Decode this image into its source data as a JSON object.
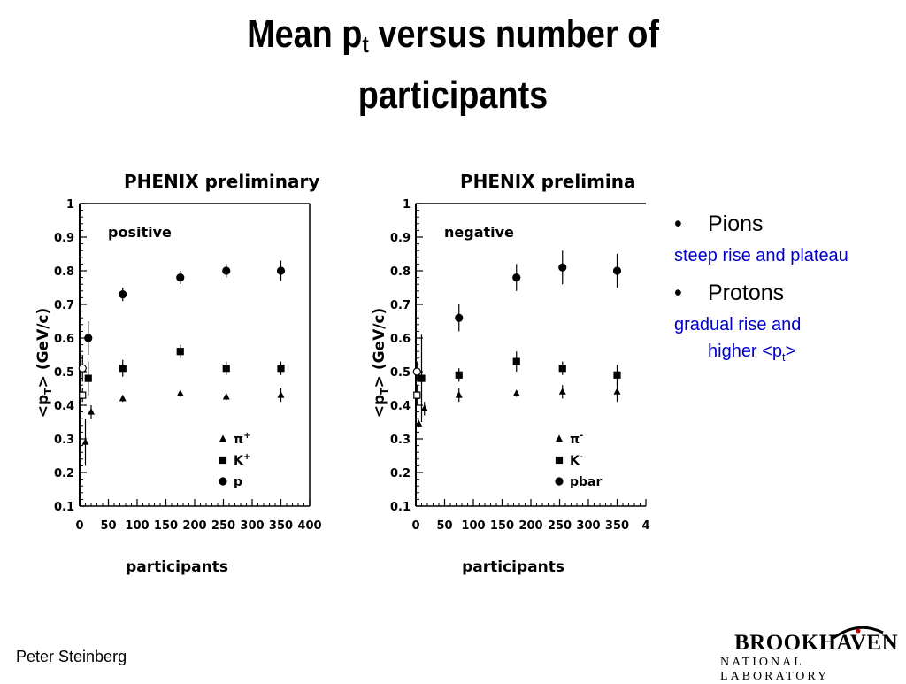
{
  "slide": {
    "title_line1_a": "Mean  p",
    "title_sub": "t",
    "title_line1_b": " versus number of",
    "title_line2": "participants",
    "author": "Peter Steinberg"
  },
  "logo": {
    "top": "BROOKHAVEN",
    "bottom": "NATIONAL LABORATORY"
  },
  "bullets": [
    {
      "label": "Pions",
      "sub": "steep rise and plateau"
    },
    {
      "label": "Protons",
      "sub_a": "gradual rise and",
      "sub_b": "higher <p",
      "sub_sub": "t",
      "sub_c": ">"
    }
  ],
  "chart_data": [
    {
      "type": "scatter",
      "title": "PHENIX preliminary",
      "panel_label": "positive",
      "xlabel": "participants",
      "ylabel": "<p",
      "ylabel_sub": "T",
      "ylabel_rest": "> (GeV/c)",
      "xlim": [
        0,
        400
      ],
      "ylim": [
        0.1,
        1.0
      ],
      "xticks": [
        "0",
        "50",
        "100",
        "150",
        "200",
        "250",
        "300",
        "350",
        "400"
      ],
      "yticks": [
        "0.1",
        "0.2",
        "0.3",
        "0.4",
        "0.5",
        "0.6",
        "0.7",
        "0.8",
        "0.9",
        "1"
      ],
      "series": [
        {
          "name": "π+",
          "marker": "triangle",
          "legend_text": "π",
          "legend_sup": "+",
          "x": [
            10,
            20,
            75,
            175,
            255,
            350
          ],
          "y": [
            0.29,
            0.38,
            0.42,
            0.435,
            0.425,
            0.43
          ],
          "err": [
            0.07,
            0.02,
            0.01,
            0.01,
            0.01,
            0.02
          ]
        },
        {
          "name": "K+",
          "marker": "square",
          "legend_text": "K",
          "legend_sup": "+",
          "x": [
            15,
            75,
            175,
            255,
            350
          ],
          "y": [
            0.48,
            0.51,
            0.56,
            0.51,
            0.51
          ],
          "err": [
            0.05,
            0.025,
            0.02,
            0.02,
            0.02
          ]
        },
        {
          "name": "p",
          "marker": "circle",
          "legend_text": "p",
          "legend_sup": "",
          "x": [
            15,
            75,
            175,
            255,
            350
          ],
          "y": [
            0.6,
            0.73,
            0.78,
            0.8,
            0.8
          ],
          "err": [
            0.05,
            0.02,
            0.02,
            0.02,
            0.03
          ]
        }
      ],
      "open_points": [
        {
          "marker": "circle",
          "x": 5,
          "y": 0.51,
          "err": 0.04
        },
        {
          "marker": "square",
          "x": 5,
          "y": 0.43,
          "err": 0.02
        }
      ]
    },
    {
      "type": "scatter",
      "title": "PHENIX prelimina",
      "panel_label": "negative",
      "xlabel": "participants",
      "ylabel": "<p",
      "ylabel_sub": "T",
      "ylabel_rest": "> (GeV/c)",
      "xlim": [
        0,
        400
      ],
      "ylim": [
        0.1,
        1.0
      ],
      "xticks": [
        "0",
        "50",
        "100",
        "150",
        "200",
        "250",
        "300",
        "350",
        "4"
      ],
      "yticks": [
        "0.1",
        "0.2",
        "0.3",
        "0.4",
        "0.5",
        "0.6",
        "0.7",
        "0.8",
        "0.9",
        "1"
      ],
      "series": [
        {
          "name": "π-",
          "marker": "triangle",
          "legend_text": "π",
          "legend_sup": "-",
          "x": [
            5,
            15,
            75,
            175,
            255,
            350
          ],
          "y": [
            0.345,
            0.39,
            0.43,
            0.435,
            0.44,
            0.44
          ],
          "err": [
            0.01,
            0.02,
            0.02,
            0.01,
            0.02,
            0.03
          ]
        },
        {
          "name": "K-",
          "marker": "square",
          "legend_text": "K",
          "legend_sup": "-",
          "x": [
            10,
            75,
            175,
            255,
            350
          ],
          "y": [
            0.48,
            0.49,
            0.53,
            0.51,
            0.49
          ],
          "err": [
            0.13,
            0.02,
            0.03,
            0.02,
            0.03
          ]
        },
        {
          "name": "pbar",
          "marker": "circle",
          "legend_text": "pbar",
          "legend_sup": "",
          "x": [
            75,
            175,
            255,
            350
          ],
          "y": [
            0.66,
            0.78,
            0.81,
            0.8
          ],
          "err": [
            0.04,
            0.04,
            0.05,
            0.05
          ]
        }
      ],
      "open_points": [
        {
          "marker": "circle",
          "x": 2,
          "y": 0.5,
          "err": 0.03
        },
        {
          "marker": "square",
          "x": 2,
          "y": 0.43,
          "err": 0.03
        }
      ]
    }
  ]
}
